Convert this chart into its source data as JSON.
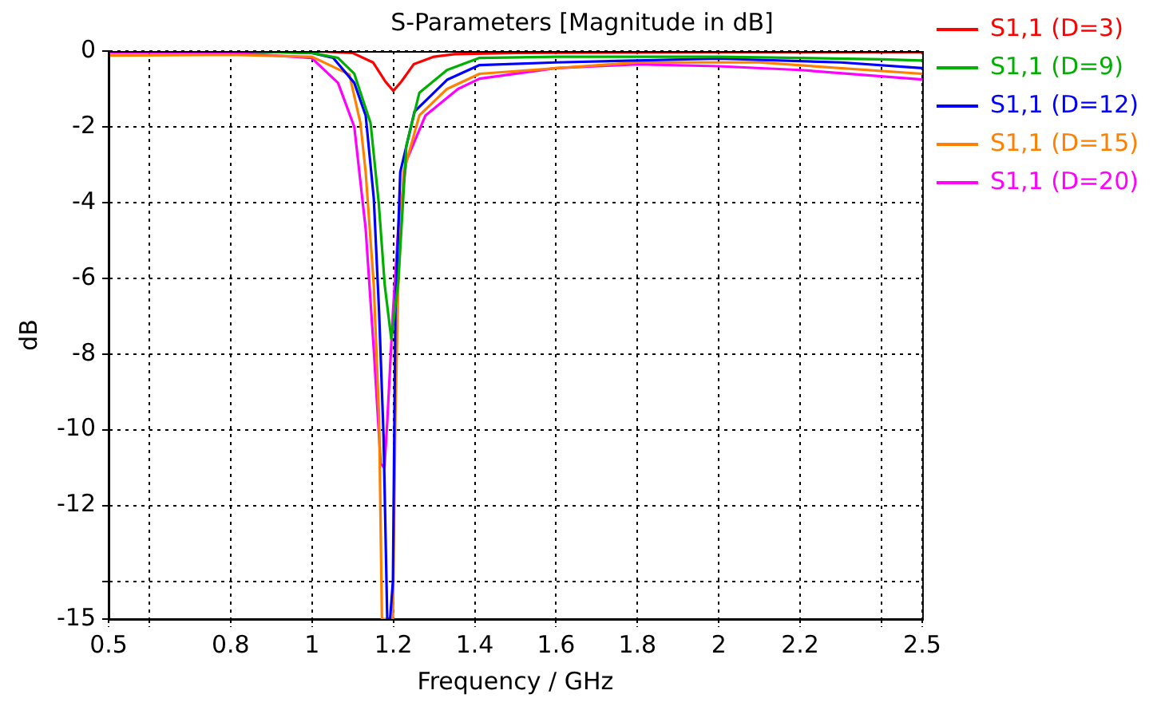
{
  "chart_data": {
    "type": "line",
    "title": "S-Parameters [Magnitude in dB]",
    "xlabel": "Frequency / GHz",
    "ylabel": "dB",
    "xlim": [
      0.5,
      2.5
    ],
    "xticks": [
      0.5,
      {
        "value": 0.6,
        "label": null
      },
      0.8,
      1,
      1.2,
      1.4,
      1.6,
      1.8,
      2,
      2.2,
      {
        "value": 2.4,
        "label": null
      },
      2.5
    ],
    "ylim": [
      -15,
      0
    ],
    "yticks": [
      -15,
      {
        "value": -14,
        "label": null
      },
      -12,
      -10,
      -8,
      -6,
      -4,
      -2,
      0
    ],
    "grid": true,
    "legend": "right",
    "marker": "none",
    "line_style": "solid",
    "series": [
      {
        "name": "S1,1 (D=3)",
        "color": "#ff0000",
        "x": [
          0.5,
          0.8,
          1.0,
          1.1,
          1.15,
          1.18,
          1.2,
          1.22,
          1.25,
          1.3,
          1.35,
          1.5,
          2.0,
          2.5
        ],
        "values": [
          0,
          0,
          0,
          -0.05,
          -0.3,
          -0.8,
          -1.05,
          -0.8,
          -0.35,
          -0.15,
          -0.08,
          -0.05,
          -0.03,
          -0.03
        ]
      },
      {
        "name": "S1,1 (D=9)",
        "color": "#00b000",
        "x": [
          0.5,
          0.8,
          1.0,
          1.064,
          1.104,
          1.144,
          1.164,
          1.179,
          1.195,
          1.212,
          1.232,
          1.264,
          1.332,
          1.412,
          1.6,
          2.0,
          2.2,
          2.4,
          2.5
        ],
        "values": [
          0,
          0,
          -0.05,
          -0.18,
          -0.6,
          -1.9,
          -4.0,
          -6.2,
          -7.6,
          -6.1,
          -2.5,
          -1.1,
          -0.5,
          -0.18,
          -0.15,
          -0.15,
          -0.18,
          -0.22,
          -0.25
        ]
      },
      {
        "name": "S1,1 (D=12)",
        "color": "#0000ff",
        "x": [
          0.5,
          0.8,
          1.0,
          1.052,
          1.104,
          1.132,
          1.152,
          1.165,
          1.176,
          1.185,
          1.192,
          1.199,
          1.205,
          1.217,
          1.252,
          1.332,
          1.412,
          1.6,
          2.0,
          2.3,
          2.5
        ],
        "values": [
          0,
          0,
          -0.05,
          -0.18,
          -0.84,
          -1.7,
          -3.9,
          -6.9,
          -10.2,
          -15,
          -15,
          -14,
          -6.9,
          -3.2,
          -1.6,
          -0.76,
          -0.37,
          -0.3,
          -0.2,
          -0.3,
          -0.45
        ]
      },
      {
        "name": "S1,1 (D=15)",
        "color": "#ff8000",
        "x": [
          0.5,
          0.8,
          1.0,
          1.092,
          1.119,
          1.132,
          1.152,
          1.165,
          1.172,
          1.199,
          1.205,
          1.212,
          1.225,
          1.264,
          1.332,
          1.412,
          1.8,
          2.1,
          2.5
        ],
        "values": [
          -0.12,
          -0.1,
          -0.15,
          -0.62,
          -1.9,
          -3.2,
          -6.2,
          -9.7,
          -15,
          -15,
          -9.7,
          -6.2,
          -3.2,
          -1.7,
          -1.0,
          -0.6,
          -0.3,
          -0.3,
          -0.6
        ]
      },
      {
        "name": "S1,1 (D=20)",
        "color": "#ff00ff",
        "x": [
          0.5,
          0.8,
          0.999,
          1.064,
          1.104,
          1.132,
          1.152,
          1.169,
          1.178,
          1.185,
          1.199,
          1.212,
          1.232,
          1.279,
          1.359,
          1.412,
          1.6,
          1.8,
          2.0,
          2.2,
          2.5
        ],
        "values": [
          -0.04,
          -0.04,
          -0.18,
          -0.84,
          -2.0,
          -4.7,
          -7.9,
          -10.9,
          -11,
          -9.8,
          -6.9,
          -4.7,
          -2.9,
          -1.7,
          -1.0,
          -0.73,
          -0.45,
          -0.35,
          -0.4,
          -0.5,
          -0.75
        ]
      }
    ]
  }
}
